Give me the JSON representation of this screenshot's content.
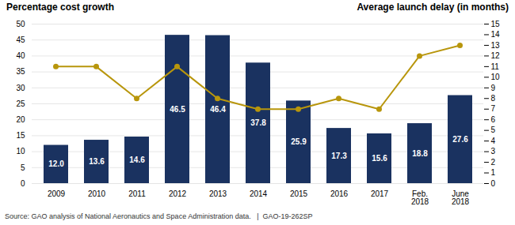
{
  "chart_data": {
    "type": "bar",
    "categories": [
      "2009",
      "2010",
      "2011",
      "2012",
      "2013",
      "2014",
      "2015",
      "2016",
      "2017",
      "Feb.\n2018",
      "June\n2018"
    ],
    "ylabel": "Percentage cost growth",
    "y2label": "Average launch delay (in months)",
    "annotations": [
      "Source: GAO analysis of National Aeronautics and Space Administration data.   |  GAO-19-262SP"
    ],
    "ylim": [
      0,
      50
    ],
    "yticks": [
      0,
      5,
      10,
      15,
      20,
      25,
      30,
      35,
      40,
      45,
      50
    ],
    "y2lim": [
      0,
      15
    ],
    "y2ticks": [
      0,
      1,
      2,
      3,
      4,
      5,
      6,
      7,
      8,
      9,
      10,
      11,
      12,
      13,
      14,
      15
    ],
    "grid": true,
    "series": [
      {
        "type": "bar",
        "color": "#1a3260",
        "data_labels": true,
        "values": [
          12.0,
          13.6,
          14.6,
          46.5,
          46.4,
          37.8,
          25.9,
          17.3,
          15.6,
          18.8,
          27.6
        ],
        "value_labels": [
          "12.0",
          "13.6",
          "14.6",
          "46.5",
          "46.4",
          "37.8",
          "25.9",
          "17.3",
          "15.6",
          "18.8",
          "27.6"
        ]
      },
      {
        "type": "line",
        "axis": "y2",
        "color": "#b8960c",
        "marker": "circle",
        "values": [
          11,
          11,
          8,
          11,
          8,
          7,
          7,
          8,
          7,
          12,
          13
        ]
      }
    ]
  }
}
